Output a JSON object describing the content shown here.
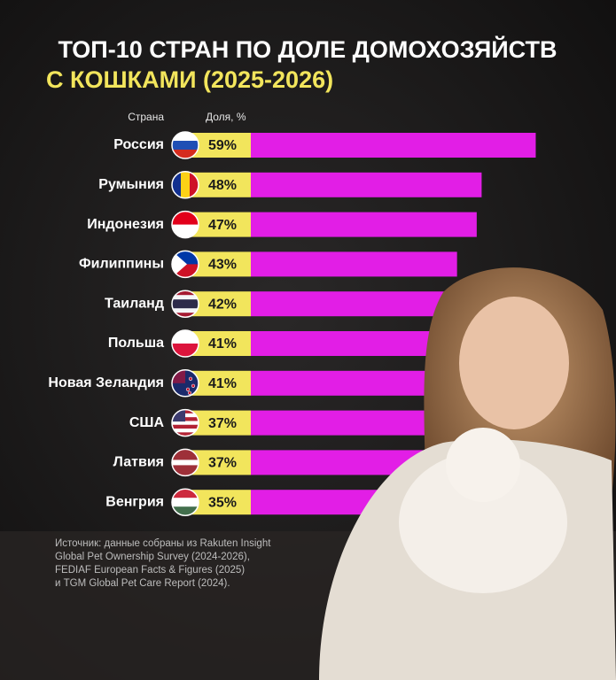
{
  "chart_data": {
    "type": "bar",
    "title": "ТОП-10 СТРАН ПО ДОЛЕ ДОМОХОЗЯЙСТВ",
    "subtitle": "С КОШКАМИ (2025-2026)",
    "category_header": "Страна",
    "value_header": "Доля, %",
    "categories": [
      "Россия",
      "Румыния",
      "Индонезия",
      "Филиппины",
      "Таиланд",
      "Польша",
      "Новая Зеландия",
      "США",
      "Латвия",
      "Венгрия"
    ],
    "values": [
      59,
      48,
      47,
      43,
      42,
      41,
      41,
      37,
      37,
      35
    ],
    "value_labels": [
      "59%",
      "48%",
      "47%",
      "43%",
      "42%",
      "41%",
      "41%",
      "37%",
      "37%",
      "35%"
    ],
    "color": "#e21ee6",
    "label_color": "#f2e55c",
    "source": [
      "Источник: данные собраны из Rakuten Insight",
      "Global Pet Ownership Survey (2024-2026),",
      "FEDIAF European Facts & Figures (2025)",
      "и TGM Global Pet Care Report (2024)."
    ]
  }
}
